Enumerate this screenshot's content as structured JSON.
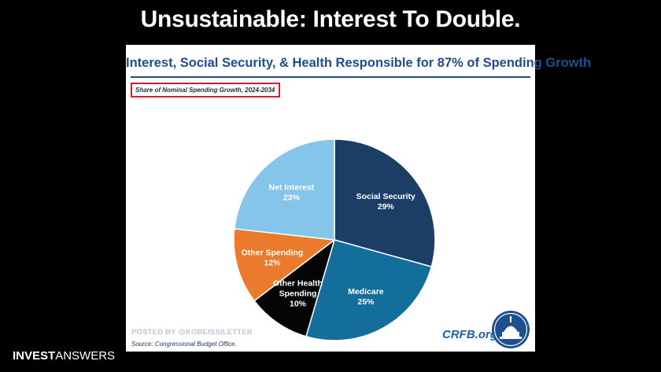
{
  "slide": {
    "title": "Unsustainable: Interest To Double.",
    "brand_bold": "INVEST",
    "brand_light": "ANSWERS"
  },
  "chart_data": {
    "type": "pie",
    "title": "Interest, Social Security, & Health Responsible for 87% of Spending Growth",
    "subtitle": "Share of Nominal Spending Growth, 2024-2034",
    "slices": [
      {
        "label": "Social Security",
        "value": 29,
        "value_label": "29%",
        "color": "#1b3d66"
      },
      {
        "label": "Medicare",
        "value": 25,
        "value_label": "25%",
        "color": "#136e9c"
      },
      {
        "label": "Other Health Spending",
        "label_lines": [
          "Other Health",
          "Spending"
        ],
        "value": 10,
        "value_label": "10%",
        "color": "#050505"
      },
      {
        "label": "Other Spending",
        "value": 12,
        "value_label": "12%",
        "color": "#ea7a2c"
      },
      {
        "label": "Net Interest",
        "value": 23,
        "value_label": "23%",
        "color": "#86c5ea"
      }
    ],
    "start": "12 o'clock",
    "direction": "clockwise",
    "legend": "none",
    "data_labels": "inside"
  },
  "footer": {
    "watermark": "POSTED BY @KOBEISSILETTER",
    "source": "Source: Congressional Budget Office.",
    "org": "CRFB.org",
    "seal_icon": "capitol-seal-icon"
  }
}
